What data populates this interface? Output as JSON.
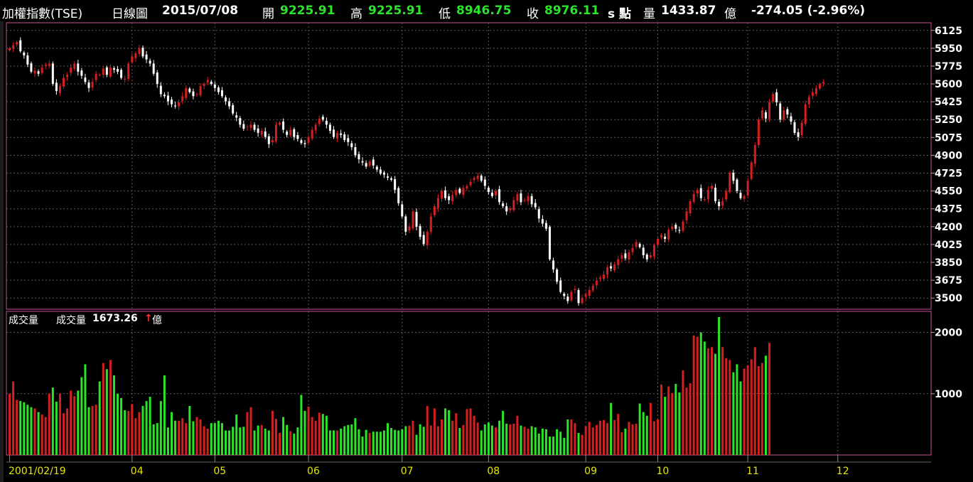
{
  "header": {
    "title": "加權指數(TSE)",
    "period": "日線圖",
    "date": "2015/07/08",
    "open_label": "開",
    "open": "9225.91",
    "high_label": "高",
    "high": "9225.91",
    "low_label": "低",
    "low": "8946.75",
    "close_label": "收",
    "close": "8976.11",
    "unit_label": "s 點",
    "volume_label": "量",
    "volume": "1433.87",
    "volume_unit": "億",
    "change": "-274.05 (-2.96%)"
  },
  "volume_panel": {
    "title": "成交量",
    "sub_label": "成交量",
    "value": "1673.26",
    "arrow": "↑",
    "unit": "億"
  },
  "colors": {
    "up": "#d42020",
    "down": "#ffffff",
    "vol_up": "#d42020",
    "vol_down": "#29e629",
    "frame": "#c8509a",
    "grid": "#5a5a5a",
    "axis_text": "#ffffff",
    "date_text": "#e6e600",
    "header_value": "#29e629"
  },
  "chart_data": [
    {
      "type": "candlestick",
      "y_ticks": [
        6125,
        5950,
        5775,
        5600,
        5425,
        5250,
        5075,
        4900,
        4725,
        4550,
        4375,
        4200,
        4025,
        3850,
        3675,
        3500
      ],
      "ylim": [
        3390,
        6200
      ],
      "x_labels": [
        "2001/02/19",
        "04",
        "05",
        "06",
        "07",
        "08",
        "09",
        "10",
        "11",
        "12"
      ],
      "x_label_days": [
        0,
        34,
        57,
        83,
        109,
        133,
        160,
        180,
        205,
        230
      ],
      "total_days": 256,
      "grid": true,
      "close": [
        5950,
        5980,
        6010,
        5920,
        5880,
        5790,
        5720,
        5730,
        5700,
        5760,
        5790,
        5800,
        5600,
        5530,
        5580,
        5660,
        5690,
        5760,
        5800,
        5720,
        5680,
        5620,
        5560,
        5620,
        5700,
        5690,
        5750,
        5690,
        5760,
        5740,
        5720,
        5660,
        5650,
        5800,
        5870,
        5900,
        5950,
        5870,
        5840,
        5800,
        5700,
        5600,
        5500,
        5480,
        5430,
        5400,
        5380,
        5420,
        5480,
        5560,
        5520,
        5480,
        5500,
        5580,
        5600,
        5640,
        5600,
        5560,
        5520,
        5480,
        5430,
        5380,
        5310,
        5270,
        5200,
        5160,
        5180,
        5200,
        5150,
        5120,
        5140,
        5080,
        5010,
        5050,
        5200,
        5220,
        5150,
        5100,
        5150,
        5080,
        5060,
        5020,
        5010,
        5080,
        5150,
        5200,
        5260,
        5250,
        5200,
        5140,
        5080,
        5120,
        5100,
        5050,
        5030,
        4980,
        4900,
        4860,
        4830,
        4790,
        4840,
        4800,
        4760,
        4720,
        4710,
        4680,
        4660,
        4560,
        4430,
        4300,
        4150,
        4200,
        4350,
        4200,
        4100,
        4030,
        4150,
        4300,
        4400,
        4480,
        4550,
        4480,
        4460,
        4510,
        4560,
        4530,
        4580,
        4600,
        4640,
        4680,
        4700,
        4650,
        4600,
        4540,
        4500,
        4550,
        4440,
        4400,
        4350,
        4380,
        4460,
        4520,
        4440,
        4460,
        4500,
        4420,
        4390,
        4280,
        4230,
        4180,
        3880,
        3780,
        3660,
        3560,
        3520,
        3470,
        3560,
        3590,
        3450,
        3500,
        3540,
        3580,
        3620,
        3670,
        3700,
        3730,
        3800,
        3790,
        3830,
        3880,
        3920,
        3890,
        3950,
        3990,
        4050,
        4000,
        3920,
        3880,
        3920,
        4020,
        4080,
        4120,
        4080,
        4170,
        4200,
        4180,
        4160,
        4250,
        4350,
        4450,
        4520,
        4560,
        4480,
        4470,
        4560,
        4600,
        4450,
        4400,
        4450,
        4550,
        4730,
        4650,
        4550,
        4480,
        4500,
        4650,
        4830,
        5000,
        5250,
        5340,
        5260,
        5420,
        5500,
        5420,
        5250,
        5340,
        5300,
        5230,
        5120,
        5080,
        5220,
        5400,
        5470,
        5520,
        5560,
        5600,
        5620
      ]
    },
    {
      "type": "bar",
      "title": "成交量",
      "y_ticks": [
        1000,
        2000
      ],
      "ylim": [
        0,
        2250
      ],
      "values": [
        1000,
        1200,
        900,
        880,
        860,
        820,
        780,
        760,
        700,
        660,
        620,
        1000,
        1100,
        870,
        1000,
        680,
        760,
        1050,
        960,
        1050,
        1270,
        1480,
        780,
        800,
        820,
        1200,
        1500,
        1400,
        1550,
        1300,
        1000,
        930,
        730,
        720,
        830,
        600,
        700,
        800,
        880,
        950,
        500,
        520,
        880,
        1300,
        450,
        700,
        560,
        560,
        600,
        520,
        800,
        550,
        620,
        580,
        470,
        430,
        520,
        520,
        560,
        520,
        400,
        400,
        460,
        660,
        450,
        460,
        700,
        780,
        400,
        480,
        490,
        430,
        400,
        720,
        590,
        360,
        620,
        490,
        390,
        350,
        450,
        980,
        720,
        790,
        620,
        560,
        690,
        670,
        640,
        400,
        400,
        400,
        430,
        470,
        490,
        500,
        600,
        420,
        300,
        410,
        360,
        380,
        380,
        380,
        400,
        520,
        440,
        410,
        400,
        420,
        470,
        480,
        560,
        330,
        500,
        460,
        800,
        480,
        760,
        470,
        580,
        760,
        730,
        560,
        680,
        440,
        490,
        750,
        760,
        640,
        530,
        400,
        500,
        530,
        480,
        450,
        560,
        720,
        510,
        500,
        510,
        640,
        480,
        460,
        430,
        470,
        450,
        350,
        430,
        420,
        300,
        300,
        420,
        380,
        280,
        580,
        580,
        520,
        360,
        330,
        470,
        540,
        450,
        490,
        560,
        570,
        520,
        850,
        570,
        670,
        370,
        430,
        540,
        500,
        510,
        840,
        700,
        640,
        850,
        550,
        580,
        1150,
        950,
        1120,
        1010,
        1160,
        1020,
        1380,
        1100,
        1170,
        1950,
        1930,
        2000,
        1850,
        1740,
        1760,
        1650,
        2250,
        1760,
        1580,
        1550,
        1350,
        1480,
        1200,
        1410,
        1460,
        1560,
        1760,
        1450,
        1500,
        1620,
        1830
      ]
    }
  ]
}
